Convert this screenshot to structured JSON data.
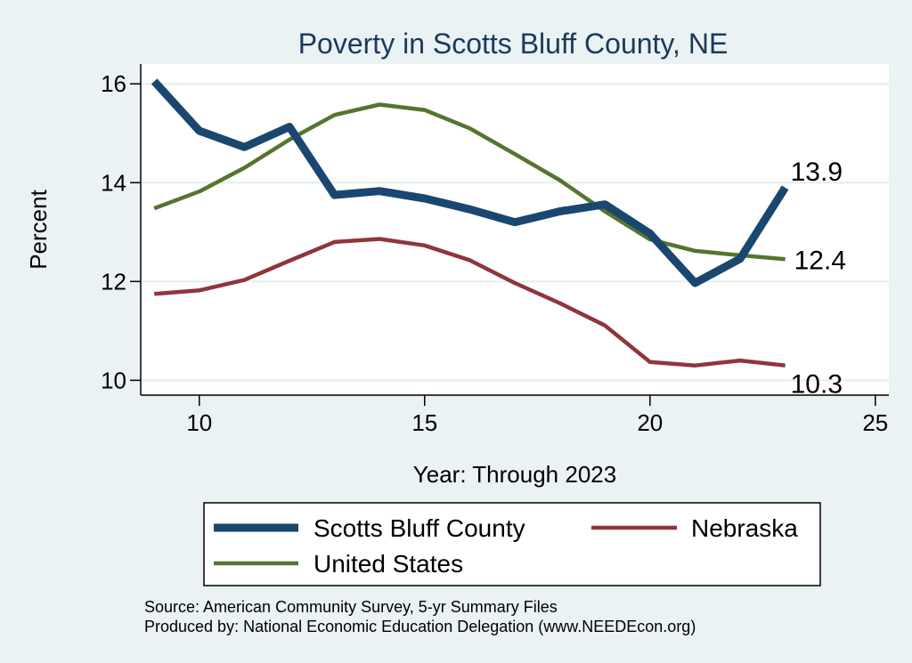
{
  "chart_data": {
    "type": "line",
    "title": "Poverty in Scotts Bluff County, NE",
    "xlabel": "Year: Through 2023",
    "ylabel": "Percent",
    "xlim": [
      8.7,
      25.3
    ],
    "ylim": [
      9.7,
      16.4
    ],
    "xticks": [
      10,
      15,
      20,
      25
    ],
    "yticks": [
      10,
      12,
      14,
      16
    ],
    "grid": "horizontal",
    "legend_position": "bottom",
    "x": [
      9,
      10,
      11,
      12,
      13,
      14,
      15,
      16,
      17,
      18,
      19,
      20,
      21,
      22,
      23
    ],
    "series": [
      {
        "name": "Scotts Bluff County",
        "color": "#1a476f",
        "values": [
          16.05,
          15.05,
          14.72,
          15.13,
          13.75,
          13.83,
          13.68,
          13.46,
          13.2,
          13.42,
          13.56,
          12.97,
          11.97,
          12.46,
          13.9
        ],
        "end_label": "13.9"
      },
      {
        "name": "Nebraska",
        "color": "#90353b",
        "values": [
          11.75,
          11.82,
          12.03,
          12.42,
          12.8,
          12.86,
          12.73,
          12.43,
          11.97,
          11.56,
          11.11,
          10.37,
          10.3,
          10.4,
          10.3
        ],
        "end_label": "10.3"
      },
      {
        "name": "United States",
        "color": "#55752f",
        "values": [
          13.48,
          13.82,
          14.3,
          14.87,
          15.37,
          15.58,
          15.47,
          15.1,
          14.58,
          14.05,
          13.42,
          12.85,
          12.62,
          12.53,
          12.45
        ],
        "end_label": "12.4"
      }
    ]
  },
  "footer": {
    "source": "Source: American Community Survey, 5-yr Summary Files",
    "produced_by": "Produced by: National Economic Education Delegation (www.NEEDEcon.org)"
  }
}
